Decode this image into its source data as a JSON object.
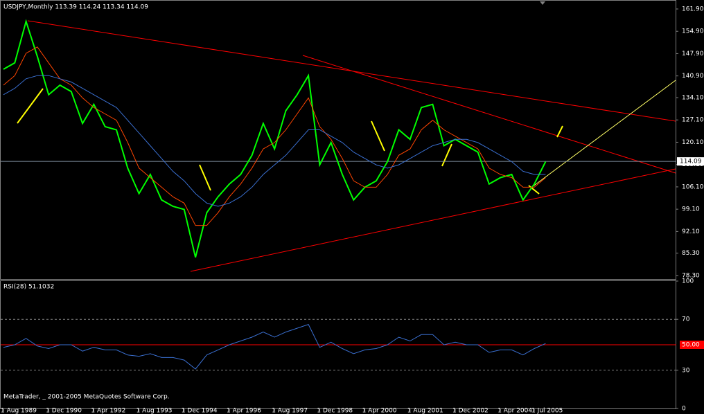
{
  "chart_data": [
    {
      "type": "line",
      "title": "USDJPY,Monthly  113.39 114.24 113.34 114.09",
      "categories": [
        "1 Aug 1989",
        null,
        null,
        null,
        "1 Dec 1990",
        null,
        null,
        null,
        "1 Apr 1992",
        null,
        null,
        null,
        "1 Aug 1993",
        null,
        null,
        null,
        "1 Dec 1994",
        null,
        null,
        null,
        "1 Apr 1996",
        null,
        null,
        null,
        "1 Aug 1997",
        null,
        null,
        null,
        "1 Dec 1998",
        null,
        null,
        null,
        "1 Apr 2000",
        null,
        null,
        null,
        "1 Aug 2001",
        null,
        null,
        null,
        "1 Dec 2002",
        null,
        null,
        null,
        "1 Apr 2004",
        null,
        null,
        "1 Jul 2005",
        null
      ],
      "series": [
        {
          "name": "USDJPY",
          "color": "#00ff00",
          "values": [
            143,
            145,
            158,
            147,
            135,
            138,
            136,
            126,
            132,
            125,
            124,
            112,
            104,
            110,
            102,
            100,
            99,
            84,
            98,
            103,
            107,
            110,
            116,
            126,
            118,
            130,
            135,
            141,
            113,
            120,
            110,
            102,
            106,
            108,
            114,
            124,
            121,
            131,
            132,
            119,
            121,
            119,
            117,
            107,
            109,
            110,
            102,
            107,
            114
          ]
        },
        {
          "name": "MA fast",
          "color": "#ff4500",
          "values": [
            138,
            141,
            148,
            150,
            145,
            140,
            138,
            134,
            131,
            129,
            127,
            120,
            112,
            109,
            106,
            103,
            101,
            94,
            94,
            98,
            103,
            107,
            112,
            118,
            120,
            124,
            129,
            134,
            125,
            121,
            115,
            108,
            106,
            106,
            110,
            116,
            118,
            124,
            127,
            124,
            122,
            120,
            118,
            112,
            110,
            109,
            106,
            106,
            109
          ]
        },
        {
          "name": "MA slow",
          "color": "#3a6fd0",
          "values": [
            135,
            137,
            140,
            141,
            141,
            140,
            139,
            137,
            135,
            133,
            131,
            127,
            123,
            119,
            115,
            111,
            108,
            104,
            101,
            100,
            101,
            103,
            106,
            110,
            113,
            116,
            120,
            124,
            124,
            122,
            120,
            117,
            115,
            113,
            112,
            113,
            115,
            117,
            119,
            120,
            121,
            121,
            120,
            118,
            116,
            114,
            111,
            110,
            110
          ]
        }
      ],
      "ylim": [
        77.2,
        164.5
      ],
      "yticks": [
        {
          "value": 161.9,
          "label": "161.90"
        },
        {
          "value": 154.9,
          "label": "154.90"
        },
        {
          "value": 147.9,
          "label": "147.90"
        },
        {
          "value": 140.9,
          "label": "140.90"
        },
        {
          "value": 134.1,
          "label": "134.10"
        },
        {
          "value": 127.1,
          "label": "127.10"
        },
        {
          "value": 120.1,
          "label": "120.10"
        },
        {
          "value": 113.1,
          "label": "113.10"
        },
        {
          "value": 106.1,
          "label": "106.10"
        },
        {
          "value": 99.1,
          "label": "99.10"
        },
        {
          "value": 92.1,
          "label": "92.10"
        },
        {
          "value": 85.3,
          "label": "85.30"
        },
        {
          "value": 78.3,
          "label": "78.30"
        }
      ],
      "last_price": 114.09
    },
    {
      "type": "line",
      "title": "RSI(28) 51.1032",
      "series": [
        {
          "name": "RSI",
          "color": "#3a6fd0",
          "values": [
            48,
            50,
            55,
            49,
            47,
            50,
            50,
            45,
            48,
            46,
            46,
            42,
            41,
            43,
            40,
            40,
            38,
            31,
            42,
            46,
            50,
            53,
            56,
            60,
            56,
            60,
            63,
            66,
            48,
            52,
            47,
            43,
            46,
            47,
            50,
            56,
            53,
            58,
            58,
            50,
            52,
            50,
            50,
            44,
            46,
            46,
            42,
            47,
            51
          ]
        }
      ],
      "ylim": [
        0,
        100
      ],
      "yticks": [
        0,
        30,
        70,
        100
      ],
      "level": {
        "value": 50,
        "label": "50.00"
      }
    }
  ],
  "footer": "MetaTrader, _ 2001-2005 MetaQuotes Software Corp."
}
